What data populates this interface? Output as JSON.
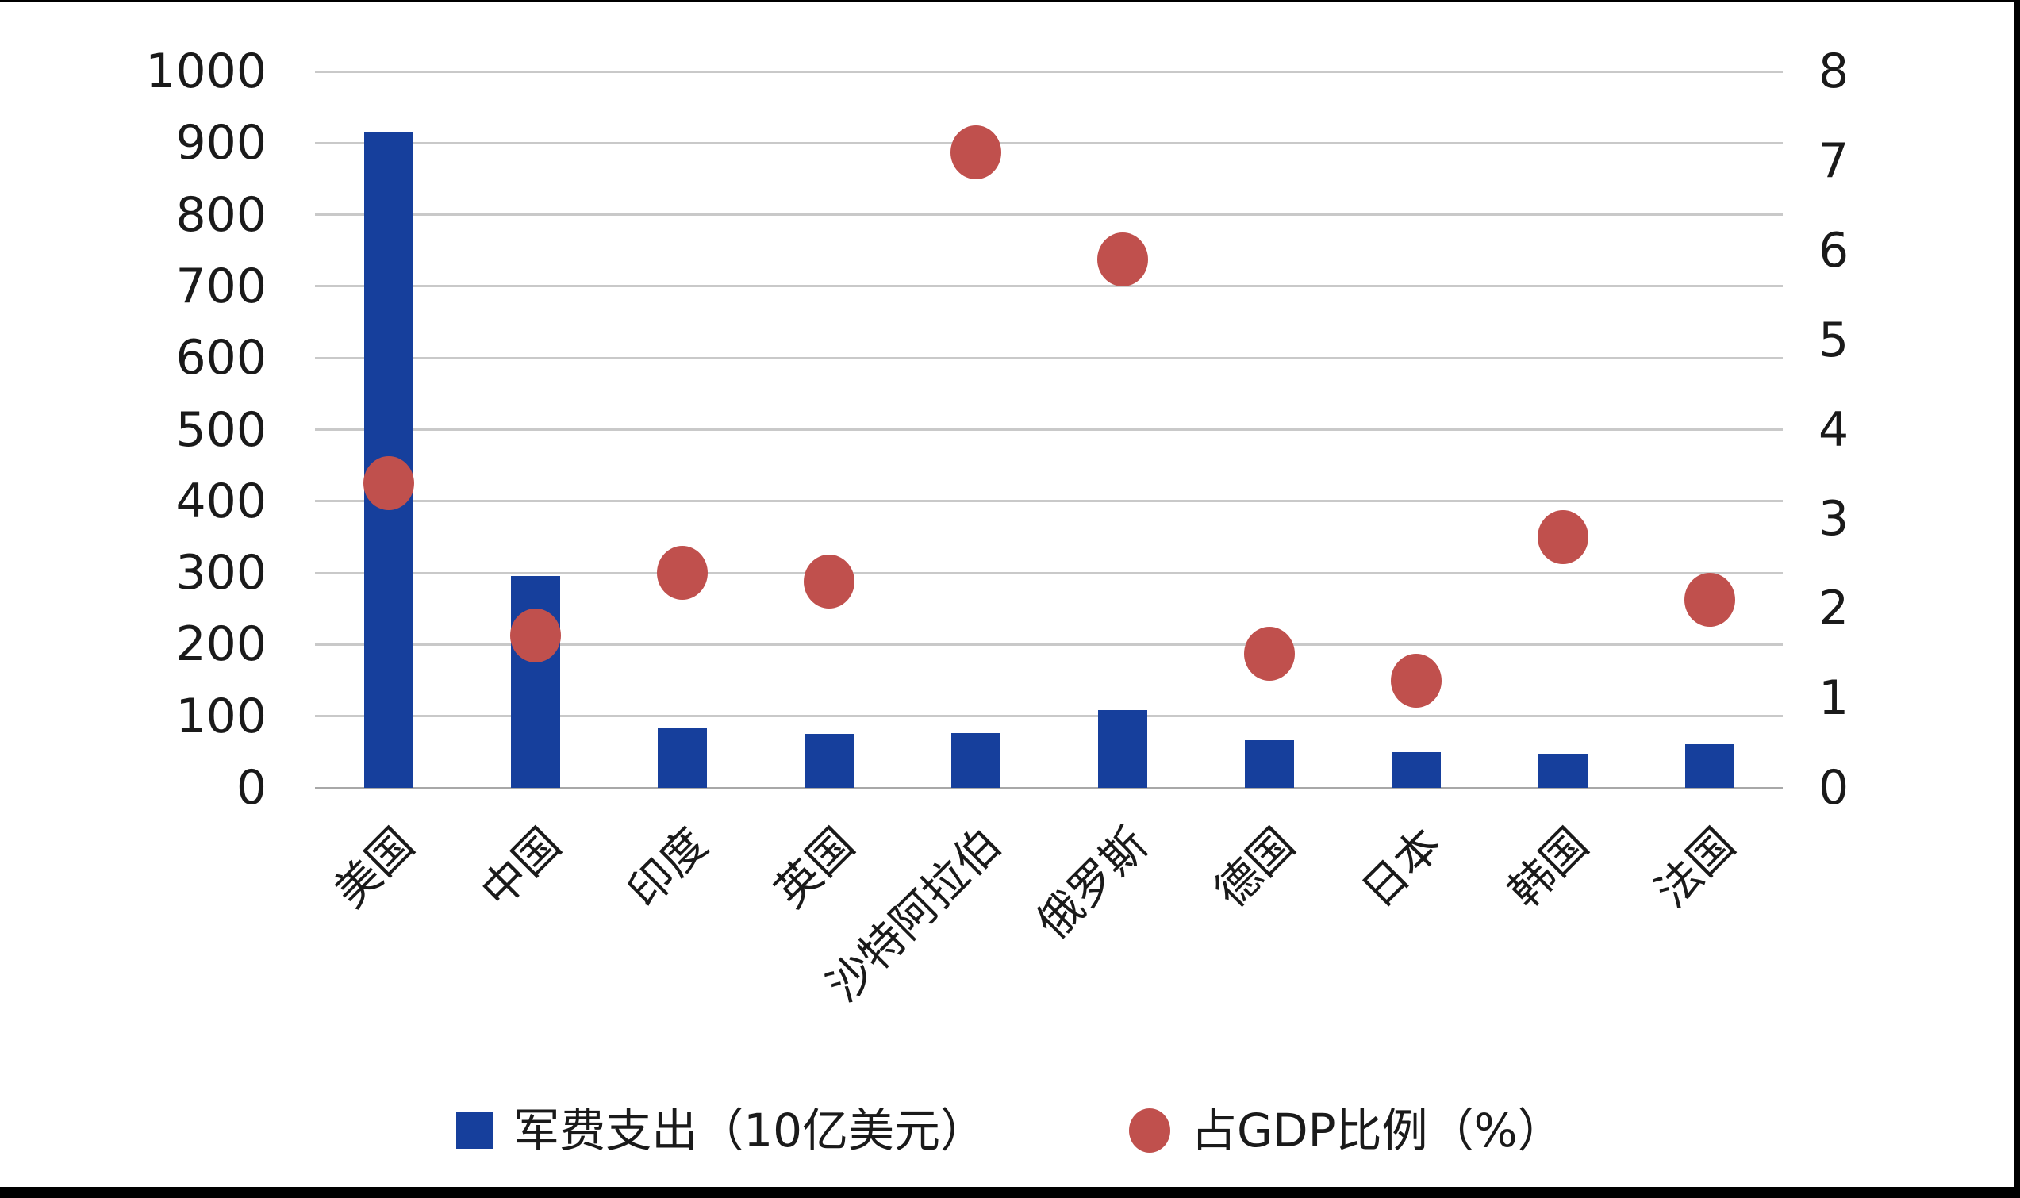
{
  "chart_data": {
    "type": "bar",
    "subtype": "combo-bar-and-scatter",
    "categories": [
      "美国",
      "中国",
      "印度",
      "英国",
      "沙特阿拉伯",
      "俄罗斯",
      "德国",
      "日本",
      "韩国",
      "法国"
    ],
    "series": [
      {
        "name": "军费支出（10亿美元）",
        "type": "bar",
        "axis": "left",
        "color": "#163f9c",
        "values": [
          916,
          296,
          84,
          75,
          76,
          109,
          67,
          50,
          48,
          61
        ]
      },
      {
        "name": "占GDP比例（%）",
        "type": "scatter",
        "axis": "right",
        "color": "#c0504d",
        "values": [
          3.4,
          1.7,
          2.4,
          2.3,
          7.1,
          5.9,
          1.5,
          1.2,
          2.8,
          2.1
        ]
      }
    ],
    "left_axis": {
      "min": 0,
      "max": 1000,
      "step": 100,
      "tick_labels": [
        "1000",
        "900",
        "800",
        "700",
        "600",
        "500",
        "400",
        "300",
        "200",
        "100",
        "0"
      ]
    },
    "right_axis": {
      "min": 0,
      "max": 8,
      "step": 1,
      "tick_labels": [
        "8",
        "7",
        "6",
        "5",
        "4",
        "3",
        "2",
        "1",
        "0"
      ]
    },
    "grid": true,
    "legend_position": "bottom",
    "title": ""
  },
  "legend": {
    "items": [
      {
        "label": "军费支出（10亿美元）",
        "marker": "square",
        "color": "#163f9c"
      },
      {
        "label": "占GDP比例（%）",
        "marker": "circle",
        "color": "#c0504d"
      }
    ]
  },
  "colors": {
    "bar": "#163f9c",
    "dot": "#c0504d",
    "grid": "#c9c9c9",
    "zero_line": "#a8a8a8",
    "text": "#1a1a1a",
    "frame": "#000000",
    "background": "#ffffff"
  }
}
